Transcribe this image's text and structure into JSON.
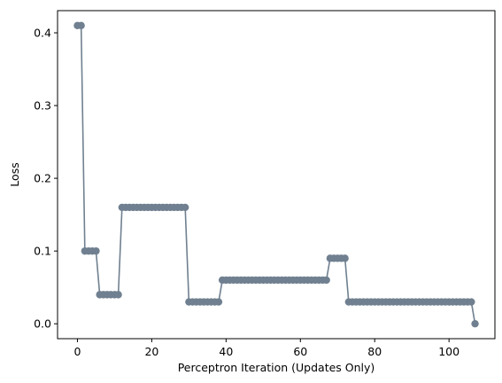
{
  "chart_data": {
    "type": "line",
    "xlabel": "Perceptron Iteration (Updates Only)",
    "ylabel": "Loss",
    "xlim": [
      -5.35,
      112.35
    ],
    "ylim": [
      -0.0205,
      0.4305
    ],
    "xticks": [
      0,
      20,
      40,
      60,
      80,
      100
    ],
    "yticks": [
      0.0,
      0.1,
      0.2,
      0.3,
      0.4
    ],
    "xtick_labels": [
      "0",
      "20",
      "40",
      "60",
      "80",
      "100"
    ],
    "ytick_labels": [
      "0.0",
      "0.1",
      "0.2",
      "0.3",
      "0.4"
    ],
    "grid": false,
    "series": [
      {
        "color": "#708090",
        "marker": "circle",
        "segments": [
          {
            "x_start": 0,
            "x_end": 1,
            "y": 0.41
          },
          {
            "x_start": 2,
            "x_end": 5,
            "y": 0.1
          },
          {
            "x_start": 6,
            "x_end": 11,
            "y": 0.04
          },
          {
            "x_start": 12,
            "x_end": 29,
            "y": 0.16
          },
          {
            "x_start": 30,
            "x_end": 38,
            "y": 0.03
          },
          {
            "x_start": 39,
            "x_end": 67,
            "y": 0.06
          },
          {
            "x_start": 68,
            "x_end": 72,
            "y": 0.09
          },
          {
            "x_start": 73,
            "x_end": 106,
            "y": 0.03
          },
          {
            "x_start": 107,
            "x_end": 107,
            "y": 0.0
          }
        ]
      }
    ]
  }
}
